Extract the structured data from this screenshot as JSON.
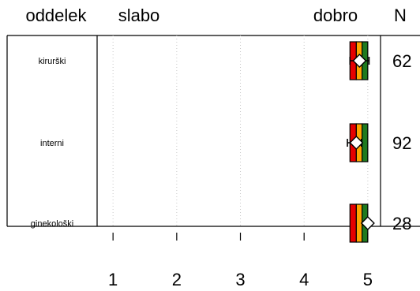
{
  "chart_data": {
    "type": "boxplot",
    "header": {
      "category_label": "oddelek",
      "low_label": "slabo",
      "high_label": "dobro",
      "n_label": "N"
    },
    "xlim": [
      0.75,
      5.2
    ],
    "xticks": [
      1,
      2,
      3,
      4,
      5
    ],
    "grid": "vertical dotted",
    "colors": {
      "band_low": "#e60000",
      "band_mid": "#ffa500",
      "band_high": "#1e7a1e",
      "marker_fill": "#ffffff",
      "outline": "#000000",
      "grid": "#c8c8c8"
    },
    "rows": [
      {
        "label": "kirurški",
        "n": "62",
        "box": [
          4.72,
          4.82,
          4.91,
          5.0
        ],
        "mean": 4.87,
        "ci": [
          4.72,
          5.02
        ]
      },
      {
        "label": "interni",
        "n": "92",
        "box": [
          4.72,
          4.82,
          4.91,
          5.0
        ],
        "mean": 4.82,
        "ci": [
          4.68,
          4.9
        ]
      },
      {
        "label": "ginekološki",
        "n": "28",
        "box": [
          4.72,
          4.82,
          4.91,
          5.0
        ],
        "mean": 5.0,
        "ci": [
          5.0,
          5.0
        ]
      }
    ]
  }
}
